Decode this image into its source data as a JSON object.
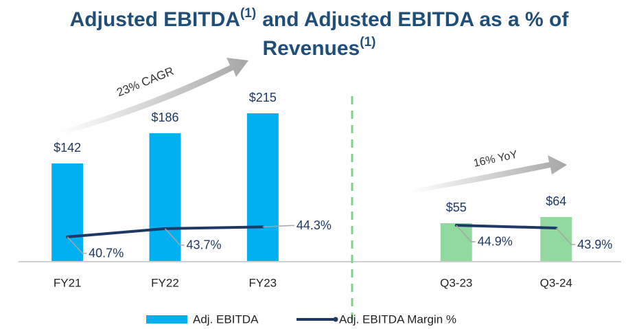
{
  "title": [
    "Adjusted EBITDA",
    "(1)",
    "and Adjusted EBITDA as a % of",
    "Revenues",
    "(1)"
  ],
  "chart_data": [
    {
      "type": "bar",
      "annotation": "23% CAGR",
      "categories": [
        "FY21",
        "FY22",
        "FY23"
      ],
      "ylim": [
        0,
        250
      ],
      "y2lim": [
        32,
        94
      ],
      "series": [
        {
          "name": "Adj. EBITDA",
          "color": "#00b0f0",
          "values": [
            142,
            186,
            215
          ],
          "value_labels": [
            "$142",
            "$186",
            "$215"
          ]
        },
        {
          "name": "Adj. EBITDA Margin %",
          "type": "line",
          "axis": "y2",
          "color": "#1f3864",
          "values": [
            40.7,
            43.7,
            44.3
          ],
          "value_labels": [
            "40.7%",
            "43.7%",
            "44.3%"
          ]
        }
      ]
    },
    {
      "type": "bar",
      "annotation": "16% YoY",
      "categories": [
        "Q3-23",
        "Q3-24"
      ],
      "ylim": [
        0,
        250
      ],
      "y2lim": [
        32,
        94
      ],
      "series": [
        {
          "name": "Adj. EBITDA",
          "color": "#92d9a0",
          "values": [
            55,
            64
          ],
          "value_labels": [
            "$55",
            "$64"
          ]
        },
        {
          "name": "Adj. EBITDA Margin %",
          "type": "line",
          "axis": "y2",
          "color": "#1f3864",
          "values": [
            44.9,
            43.9
          ],
          "value_labels": [
            "44.9%",
            "43.9%"
          ]
        }
      ]
    }
  ]
}
